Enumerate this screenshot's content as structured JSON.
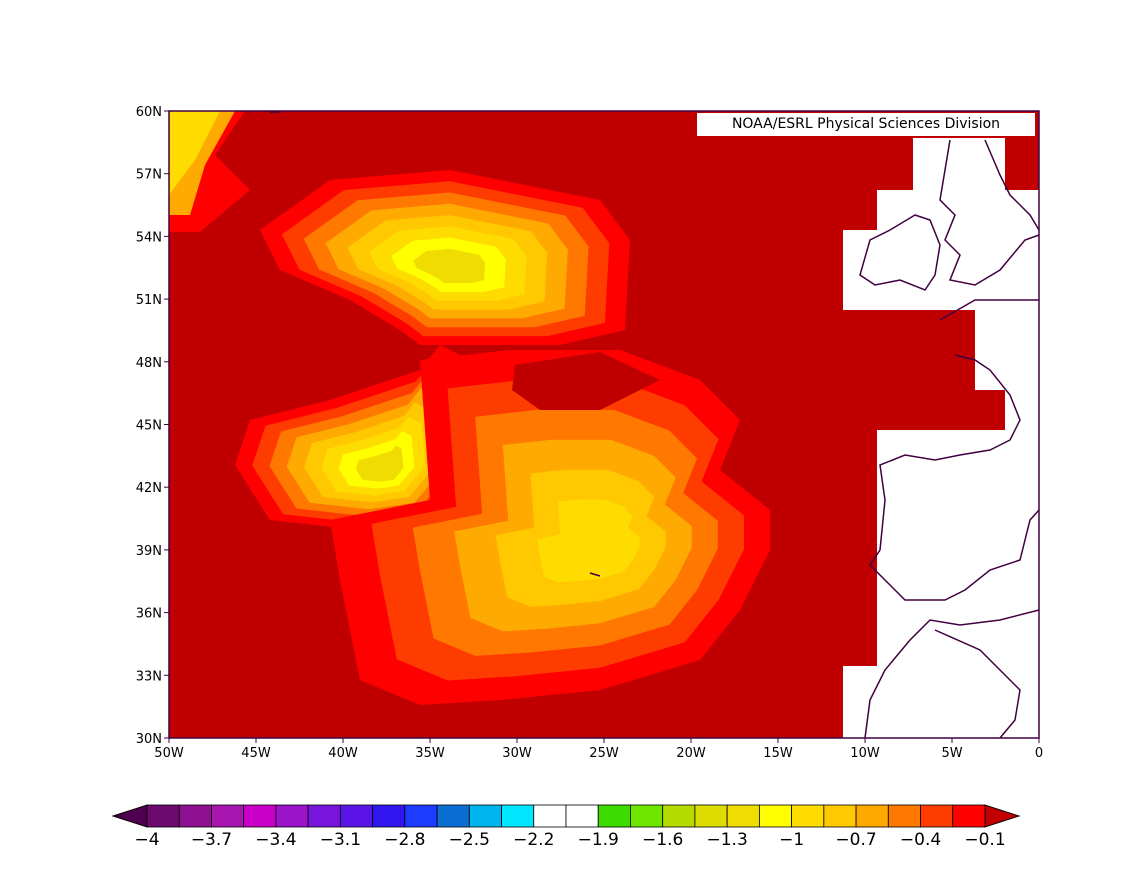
{
  "map": {
    "credit": "NOAA/ESRL Physical Sciences Division",
    "lat_labels": [
      "60N",
      "57N",
      "54N",
      "51N",
      "48N",
      "45N",
      "42N",
      "39N",
      "36N",
      "33N",
      "30N"
    ],
    "lon_labels": [
      "50W",
      "45W",
      "40W",
      "35W",
      "30W",
      "25W",
      "20W",
      "15W",
      "10W",
      "5W",
      "0"
    ],
    "colorbar": {
      "labels": [
        "−4",
        "−3.7",
        "−3.4",
        "−3.1",
        "−2.8",
        "−2.5",
        "−2.2",
        "−1.9",
        "−1.6",
        "−1.3",
        "−1",
        "−0.7",
        "−0.4",
        "−0.1"
      ],
      "low_color": "#500050",
      "high_color": "#c00000",
      "colors": [
        "#6e0a6e",
        "#8c1090",
        "#a816b0",
        "#c800c8",
        "#9a14c8",
        "#7814dc",
        "#5a14e6",
        "#3214f0",
        "#1e3cff",
        "#0a6ed2",
        "#00b4f0",
        "#00e6ff",
        "#ffffff",
        "#ffffff",
        "#3cdc00",
        "#6ee600",
        "#b4dc00",
        "#dcdc00",
        "#f0dc00",
        "#ffff00",
        "#ffdc00",
        "#ffc800",
        "#ffaa00",
        "#ff7800",
        "#ff3c00",
        "#ff0000"
      ]
    }
  }
}
